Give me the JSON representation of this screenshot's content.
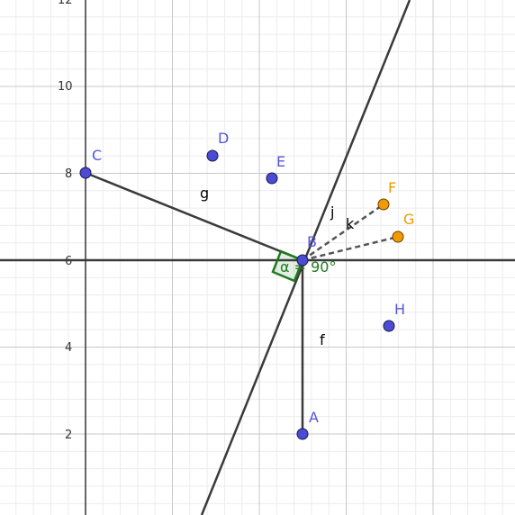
{
  "app": "GeoGebra",
  "axes": {
    "y_ticks": [
      "2",
      "4",
      "6",
      "8",
      "10",
      "12"
    ]
  },
  "colors": {
    "point_blue": "#4b4bd6",
    "point_orange": "#f29a00",
    "label_blue": "#5555dd",
    "label_orange": "#f29a00",
    "line": "#3a3a3a",
    "angle": "#1f7a1f",
    "axis": "#333333",
    "grid_major": "#c8c8c8",
    "grid_minor": "#ececec"
  },
  "points": [
    {
      "id": "A",
      "label": "A",
      "color": "blue"
    },
    {
      "id": "B",
      "label": "B",
      "color": "blue"
    },
    {
      "id": "C",
      "label": "C",
      "color": "blue"
    },
    {
      "id": "D",
      "label": "D",
      "color": "blue"
    },
    {
      "id": "E",
      "label": "E",
      "color": "blue"
    },
    {
      "id": "F",
      "label": "F",
      "color": "orange"
    },
    {
      "id": "G",
      "label": "G",
      "color": "orange"
    },
    {
      "id": "H",
      "label": "H",
      "color": "blue"
    }
  ],
  "objects": {
    "f": "f",
    "g": "g",
    "j": "j",
    "k": "k"
  },
  "angle": {
    "name": "α",
    "text": "α = 90°"
  }
}
